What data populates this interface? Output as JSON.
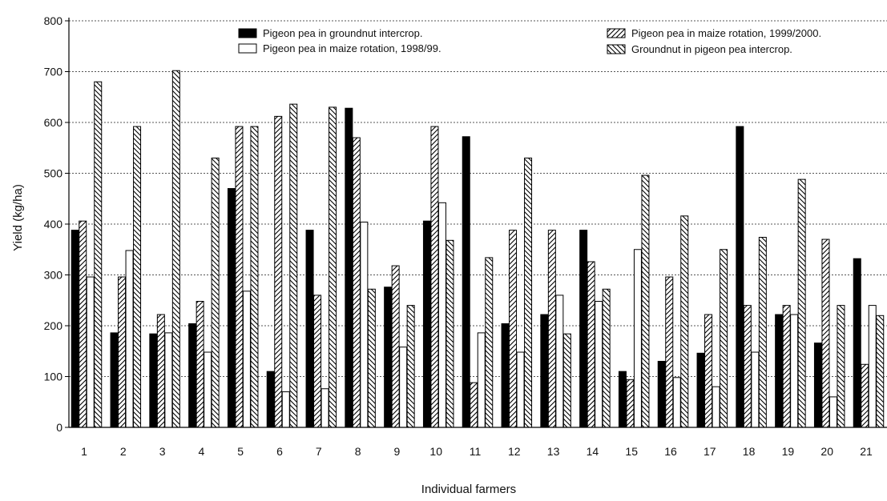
{
  "chart_data": {
    "type": "bar",
    "title": "",
    "xlabel": "Individual farmers",
    "ylabel": "Yield (kg/ha)",
    "ylim": [
      0,
      800
    ],
    "yticks": [
      "0",
      "100",
      "200",
      "300",
      "400",
      "500",
      "600",
      "700",
      "800"
    ],
    "grid": "horizontal dotted",
    "legend_placement": "top",
    "categories": [
      "1",
      "2",
      "3",
      "4",
      "5",
      "6",
      "7",
      "8",
      "9",
      "10",
      "11",
      "12",
      "13",
      "14",
      "15",
      "16",
      "17",
      "18",
      "19",
      "20",
      "21"
    ],
    "series": [
      {
        "name": "Pigeon pea in groundnut intercrop.",
        "pattern": "solid",
        "values": [
          388,
          186,
          184,
          204,
          470,
          110,
          388,
          628,
          276,
          406,
          572,
          204,
          222,
          388,
          110,
          130,
          146,
          592,
          222,
          166,
          332
        ]
      },
      {
        "name": "Pigeon pea in maize rotation, 1999/2000.",
        "pattern": "diagonal-up",
        "values": [
          406,
          296,
          222,
          248,
          592,
          612,
          260,
          570,
          318,
          592,
          88,
          388,
          388,
          326,
          94,
          296,
          222,
          240,
          240,
          370,
          124
        ]
      },
      {
        "name": "Pigeon pea in maize rotation, 1998/99.",
        "pattern": "hollow",
        "values": [
          296,
          348,
          186,
          148,
          268,
          70,
          76,
          404,
          158,
          442,
          186,
          148,
          260,
          248,
          350,
          98,
          80,
          148,
          222,
          60,
          240
        ]
      },
      {
        "name": "Groundnut in pigeon pea intercrop.",
        "pattern": "diagonal-down",
        "values": [
          680,
          592,
          702,
          530,
          592,
          636,
          630,
          272,
          240,
          368,
          334,
          530,
          184,
          272,
          496,
          416,
          350,
          374,
          488,
          240,
          220
        ]
      }
    ],
    "colors": {
      "ink": "#000000",
      "grid": "#555555",
      "background": "#ffffff"
    }
  }
}
